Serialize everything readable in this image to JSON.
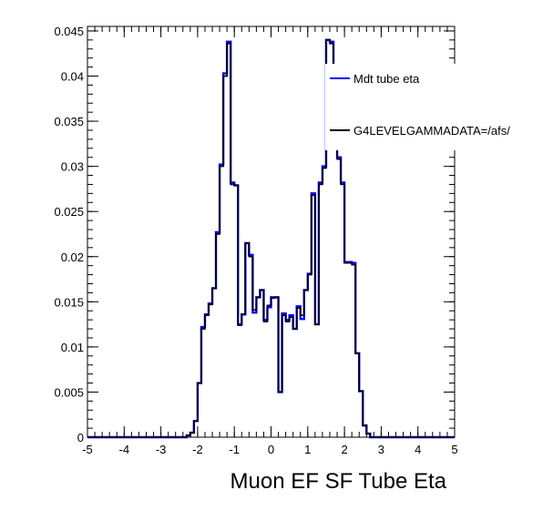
{
  "chart_data": {
    "type": "histogram",
    "title": "",
    "xlabel": "Muon EF SF Tube Eta",
    "ylabel": "",
    "xlim": [
      -5,
      5
    ],
    "ylim": [
      0,
      0.0455
    ],
    "grid": false,
    "legend_placement": "top-right",
    "x_ticks": [
      "-5",
      "-4",
      "-3",
      "-2",
      "-1",
      "0",
      "1",
      "2",
      "3",
      "4",
      "5"
    ],
    "y_ticks": [
      "0",
      "0.005",
      "0.01",
      "0.015",
      "0.02",
      "0.025",
      "0.03",
      "0.035",
      "0.04",
      "0.045"
    ],
    "bin_edges_start": -5,
    "bin_width": 0.1,
    "series": [
      {
        "name": "Mdt tube eta",
        "color": "#0000ff",
        "values": [
          0,
          0,
          0,
          0,
          0,
          0,
          0,
          0,
          0,
          0,
          0,
          0,
          0,
          0,
          0,
          0,
          0,
          0,
          0,
          0,
          0,
          0,
          0,
          0,
          0,
          0,
          0,
          0.0002,
          0.0005,
          0.0018,
          0.006,
          0.0122,
          0.0136,
          0.0148,
          0.0165,
          0.0227,
          0.0302,
          0.0403,
          0.0438,
          0.0282,
          0.0279,
          0.0125,
          0.0136,
          0.0215,
          0.0202,
          0.0138,
          0.0155,
          0.0163,
          0.013,
          0.0144,
          0.0155,
          0.0155,
          0.005,
          0.0137,
          0.013,
          0.0135,
          0.012,
          0.0145,
          0.0131,
          0.0163,
          0.0181,
          0.027,
          0.0125,
          0.0282,
          0.03,
          0.044,
          0.0438,
          0.0343,
          0.031,
          0.0282,
          0.0194,
          0.0194,
          0.0193,
          0.0093,
          0.0051,
          0.0013,
          0.0004,
          0,
          0,
          0,
          0,
          0,
          0,
          0,
          0,
          0,
          0,
          0,
          0,
          0,
          0,
          0,
          0,
          0,
          0,
          0,
          0,
          0,
          0,
          0
        ]
      },
      {
        "name": "G4LEVELGAMMADATA=/afs/",
        "color": "#000000",
        "values": [
          0,
          0,
          0,
          0,
          0,
          0,
          0,
          0,
          0,
          0,
          0,
          0,
          0,
          0,
          0,
          0,
          0,
          0,
          0,
          0,
          0,
          0,
          0,
          0,
          0,
          0,
          0,
          0.0002,
          0.0005,
          0.0018,
          0.006,
          0.012,
          0.0135,
          0.0147,
          0.0165,
          0.0225,
          0.03,
          0.04,
          0.0436,
          0.028,
          0.0279,
          0.0124,
          0.0136,
          0.0215,
          0.02,
          0.0141,
          0.0155,
          0.0163,
          0.0128,
          0.0146,
          0.0154,
          0.0155,
          0.005,
          0.0135,
          0.0128,
          0.0133,
          0.012,
          0.0143,
          0.0135,
          0.0163,
          0.018,
          0.0268,
          0.0125,
          0.028,
          0.0298,
          0.044,
          0.0436,
          0.0343,
          0.0308,
          0.028,
          0.0193,
          0.0193,
          0.0191,
          0.0093,
          0.0051,
          0.0013,
          0.0004,
          0,
          0,
          0,
          0,
          0,
          0,
          0,
          0,
          0,
          0,
          0,
          0,
          0,
          0,
          0,
          0,
          0,
          0,
          0,
          0,
          0,
          0,
          0
        ]
      }
    ]
  }
}
